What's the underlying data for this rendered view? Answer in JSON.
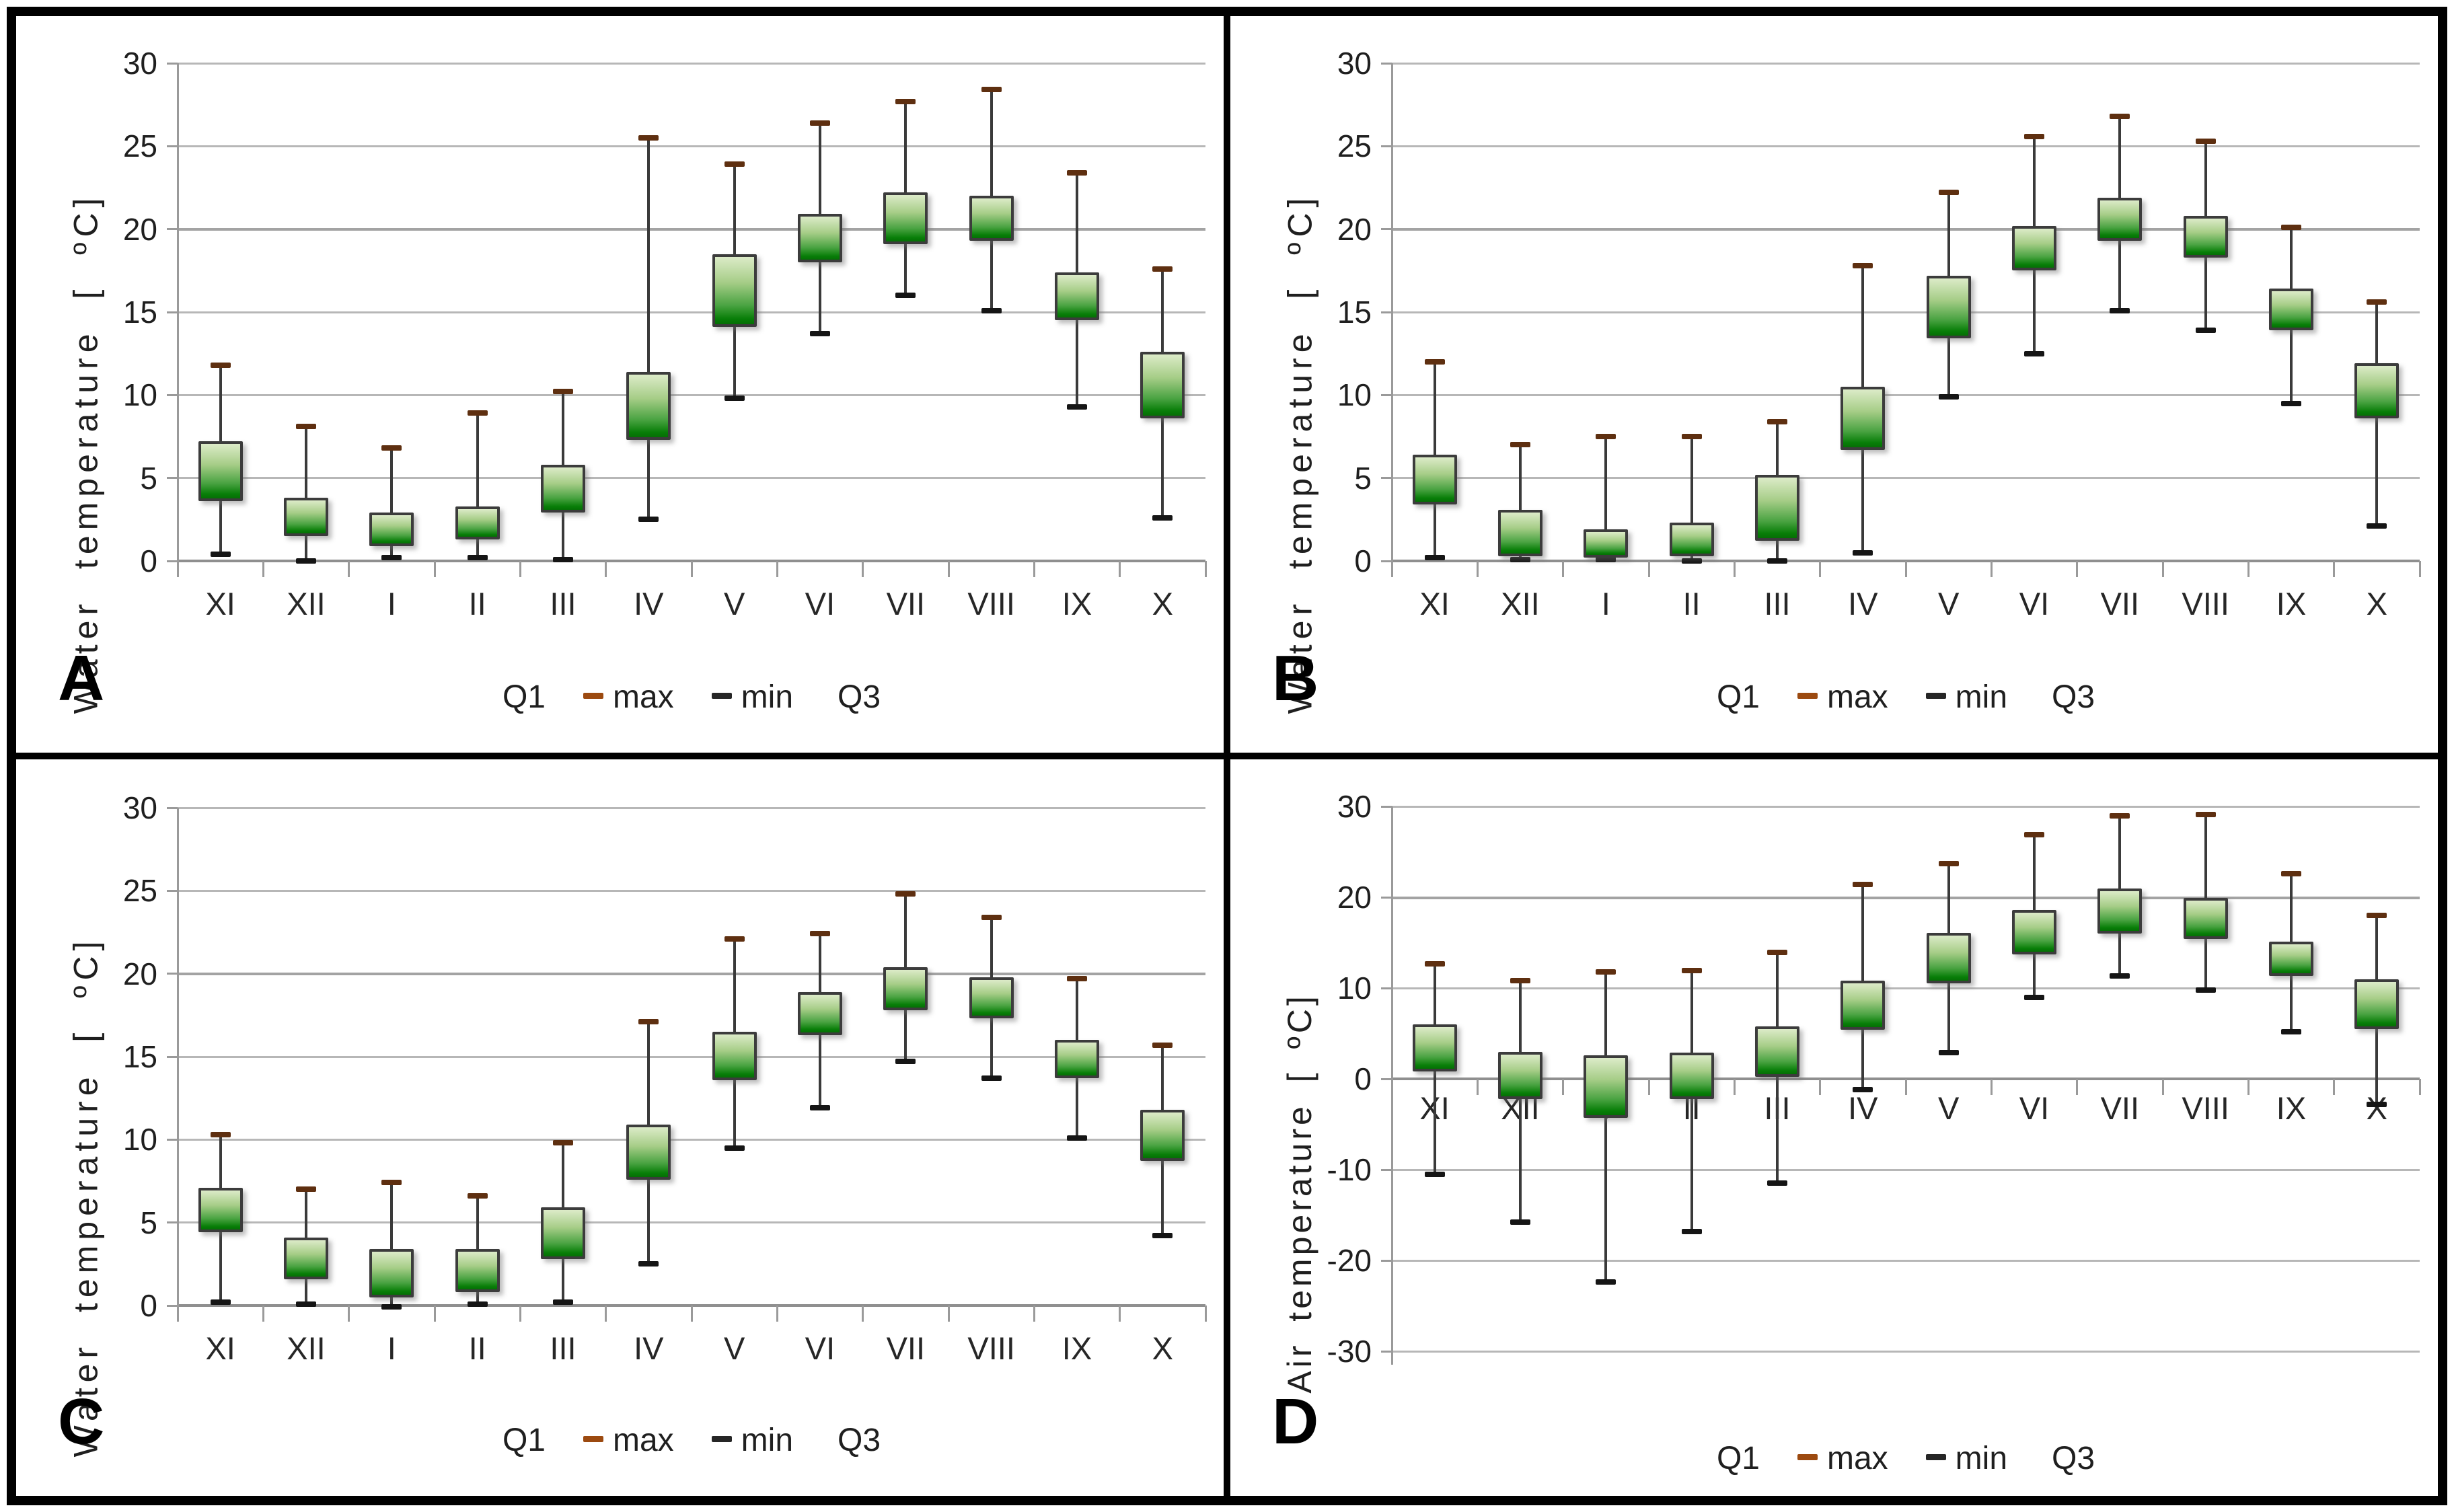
{
  "figure": {
    "description": "Four box-and-whisker climate panels A-D by month (XI-X)"
  },
  "colors": {
    "box_gradient_top": "#dcebc8",
    "box_gradient_bottom": "#087e08",
    "box_border": "#3c3c3c",
    "whisker": "#3a3a3a",
    "cap_max": "#5e2f10",
    "cap_min": "#151515",
    "legend_max_dash": "#9c4a10",
    "legend_min_dash": "#262626",
    "gridline": "#b7b7b7",
    "axis": "#9a9a9a",
    "text": "#1f1f1f"
  },
  "chart_data": [
    {
      "type": "boxplot",
      "panel_letter": "A",
      "ylabel": "Water temperature [ ºC]",
      "ylim": [
        0,
        30
      ],
      "ytick_step": 5,
      "grid": true,
      "legend_position": "bottom",
      "legend": {
        "q1": "Q1",
        "max": "max",
        "min": "min",
        "q3": "Q3"
      },
      "categories": [
        "XI",
        "XII",
        "I",
        "II",
        "III",
        "IV",
        "V",
        "VI",
        "VII",
        "VIII",
        "IX",
        "X"
      ],
      "boxes": [
        {
          "category": "XI",
          "min": 0.4,
          "q1": 3.6,
          "q3": 7.2,
          "max": 11.8
        },
        {
          "category": "XII",
          "min": 0.0,
          "q1": 1.5,
          "q3": 3.8,
          "max": 8.1
        },
        {
          "category": "I",
          "min": 0.2,
          "q1": 0.9,
          "q3": 2.9,
          "max": 6.8
        },
        {
          "category": "II",
          "min": 0.2,
          "q1": 1.3,
          "q3": 3.3,
          "max": 8.9
        },
        {
          "category": "III",
          "min": 0.1,
          "q1": 2.9,
          "q3": 5.8,
          "max": 10.2
        },
        {
          "category": "IV",
          "min": 2.5,
          "q1": 7.3,
          "q3": 11.4,
          "max": 25.5
        },
        {
          "category": "V",
          "min": 9.8,
          "q1": 14.1,
          "q3": 18.5,
          "max": 23.9
        },
        {
          "category": "VI",
          "min": 13.7,
          "q1": 18.0,
          "q3": 20.9,
          "max": 26.4
        },
        {
          "category": "VII",
          "min": 16.0,
          "q1": 19.1,
          "q3": 22.2,
          "max": 27.7
        },
        {
          "category": "VIII",
          "min": 15.1,
          "q1": 19.3,
          "q3": 22.0,
          "max": 28.4
        },
        {
          "category": "IX",
          "min": 9.3,
          "q1": 14.5,
          "q3": 17.4,
          "max": 23.4
        },
        {
          "category": "X",
          "min": 2.6,
          "q1": 8.6,
          "q3": 12.6,
          "max": 17.6
        }
      ]
    },
    {
      "type": "boxplot",
      "panel_letter": "B",
      "ylabel": "Water temperature [ ºC]",
      "ylim": [
        0,
        30
      ],
      "ytick_step": 5,
      "grid": true,
      "legend_position": "bottom",
      "legend": {
        "q1": "Q1",
        "max": "max",
        "min": "min",
        "q3": "Q3"
      },
      "categories": [
        "XI",
        "XII",
        "I",
        "II",
        "III",
        "IV",
        "V",
        "VI",
        "VII",
        "VIII",
        "IX",
        "X"
      ],
      "boxes": [
        {
          "category": "XI",
          "min": 0.2,
          "q1": 3.4,
          "q3": 6.4,
          "max": 12.0
        },
        {
          "category": "XII",
          "min": 0.1,
          "q1": 0.3,
          "q3": 3.1,
          "max": 7.0
        },
        {
          "category": "I",
          "min": 0.1,
          "q1": 0.2,
          "q3": 1.9,
          "max": 7.5
        },
        {
          "category": "II",
          "min": 0.0,
          "q1": 0.3,
          "q3": 2.3,
          "max": 7.5
        },
        {
          "category": "III",
          "min": 0.0,
          "q1": 1.2,
          "q3": 5.2,
          "max": 8.4
        },
        {
          "category": "IV",
          "min": 0.5,
          "q1": 6.7,
          "q3": 10.5,
          "max": 17.8
        },
        {
          "category": "V",
          "min": 9.9,
          "q1": 13.4,
          "q3": 17.2,
          "max": 22.2
        },
        {
          "category": "VI",
          "min": 12.5,
          "q1": 17.5,
          "q3": 20.2,
          "max": 25.6
        },
        {
          "category": "VII",
          "min": 15.1,
          "q1": 19.3,
          "q3": 21.9,
          "max": 26.8
        },
        {
          "category": "VIII",
          "min": 13.9,
          "q1": 18.3,
          "q3": 20.8,
          "max": 25.3
        },
        {
          "category": "IX",
          "min": 9.5,
          "q1": 13.9,
          "q3": 16.4,
          "max": 20.1
        },
        {
          "category": "X",
          "min": 2.1,
          "q1": 8.6,
          "q3": 11.9,
          "max": 15.6
        }
      ]
    },
    {
      "type": "boxplot",
      "panel_letter": "C",
      "ylabel": "Water temperature [ ºC]",
      "ylim": [
        0,
        30
      ],
      "ytick_step": 5,
      "grid": true,
      "legend_position": "bottom",
      "legend": {
        "q1": "Q1",
        "max": "max",
        "min": "min",
        "q3": "Q3"
      },
      "categories": [
        "XI",
        "XII",
        "I",
        "II",
        "III",
        "IV",
        "V",
        "VI",
        "VII",
        "VIII",
        "IX",
        "X"
      ],
      "boxes": [
        {
          "category": "XI",
          "min": 0.2,
          "q1": 4.4,
          "q3": 7.1,
          "max": 10.3
        },
        {
          "category": "XII",
          "min": 0.1,
          "q1": 1.6,
          "q3": 4.1,
          "max": 7.0
        },
        {
          "category": "I",
          "min": -0.1,
          "q1": 0.5,
          "q3": 3.4,
          "max": 7.4
        },
        {
          "category": "II",
          "min": 0.1,
          "q1": 0.8,
          "q3": 3.4,
          "max": 6.6
        },
        {
          "category": "III",
          "min": 0.2,
          "q1": 2.8,
          "q3": 5.9,
          "max": 9.8
        },
        {
          "category": "IV",
          "min": 2.5,
          "q1": 7.6,
          "q3": 10.9,
          "max": 17.1
        },
        {
          "category": "V",
          "min": 9.5,
          "q1": 13.6,
          "q3": 16.5,
          "max": 22.1
        },
        {
          "category": "VI",
          "min": 11.9,
          "q1": 16.3,
          "q3": 18.9,
          "max": 22.4
        },
        {
          "category": "VII",
          "min": 14.7,
          "q1": 17.8,
          "q3": 20.4,
          "max": 24.8
        },
        {
          "category": "VIII",
          "min": 13.7,
          "q1": 17.3,
          "q3": 19.8,
          "max": 23.4
        },
        {
          "category": "IX",
          "min": 10.1,
          "q1": 13.7,
          "q3": 16.0,
          "max": 19.7
        },
        {
          "category": "X",
          "min": 4.2,
          "q1": 8.7,
          "q3": 11.8,
          "max": 15.7
        }
      ]
    },
    {
      "type": "boxplot",
      "panel_letter": "D",
      "ylabel": "Air temperature [ ºC]",
      "ylim": [
        -30,
        30
      ],
      "ytick_step": 10,
      "grid": true,
      "legend_position": "bottom",
      "legend": {
        "q1": "Q1",
        "max": "max",
        "min": "min",
        "q3": "Q3"
      },
      "categories": [
        "XI",
        "XII",
        "I",
        "II",
        "III",
        "IV",
        "V",
        "VI",
        "VII",
        "VIII",
        "IX",
        "X"
      ],
      "boxes": [
        {
          "category": "XI",
          "min": -10.5,
          "q1": 0.8,
          "q3": 6.0,
          "max": 12.7
        },
        {
          "category": "XII",
          "min": -15.8,
          "q1": -2.2,
          "q3": 3.0,
          "max": 10.8
        },
        {
          "category": "I",
          "min": -22.4,
          "q1": -4.3,
          "q3": 2.6,
          "max": 11.8
        },
        {
          "category": "II",
          "min": -16.8,
          "q1": -2.2,
          "q3": 2.9,
          "max": 11.9
        },
        {
          "category": "III",
          "min": -11.5,
          "q1": 0.2,
          "q3": 5.8,
          "max": 13.9
        },
        {
          "category": "IV",
          "min": -1.2,
          "q1": 5.4,
          "q3": 10.8,
          "max": 21.4
        },
        {
          "category": "V",
          "min": 2.9,
          "q1": 10.5,
          "q3": 16.1,
          "max": 23.7
        },
        {
          "category": "VI",
          "min": 9.0,
          "q1": 13.7,
          "q3": 18.6,
          "max": 26.9
        },
        {
          "category": "VII",
          "min": 11.3,
          "q1": 16.0,
          "q3": 21.0,
          "max": 29.0
        },
        {
          "category": "VIII",
          "min": 9.8,
          "q1": 15.4,
          "q3": 19.9,
          "max": 29.1
        },
        {
          "category": "IX",
          "min": 5.2,
          "q1": 11.3,
          "q3": 15.1,
          "max": 22.6
        },
        {
          "category": "X",
          "min": -2.8,
          "q1": 5.5,
          "q3": 11.0,
          "max": 18.0
        }
      ]
    }
  ]
}
